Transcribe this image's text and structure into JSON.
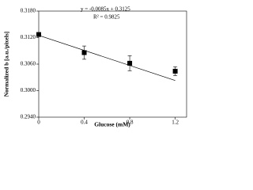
{
  "chart_data": {
    "type": "scatter",
    "title": "",
    "x_label": "Glucose (mM)",
    "y_label": "Normalized b [a.u./pixels]",
    "x": [
      0,
      0.4,
      0.8,
      1.2
    ],
    "series": [
      {
        "color": "#000000",
        "values": [
          0.3127,
          0.3086,
          0.3062,
          0.3044
        ],
        "errors": [
          0.0003,
          0.0015,
          0.0017,
          0.001
        ]
      }
    ],
    "trendline": {
      "slope": -0.0085,
      "intercept": 0.3125,
      "equation": "y = -0.0085x + 0.3125",
      "r2": "R² = 0.9825"
    },
    "xlim": [
      0,
      1.3
    ],
    "xticks": [
      0,
      0.4,
      0.8,
      1.2
    ],
    "ylim": [
      0.294,
      0.318
    ],
    "yticks": [
      {
        "value": 0.294,
        "label": "0.2940"
      },
      {
        "value": 0.3,
        "label": "0.3000"
      },
      {
        "value": 0.306,
        "label": "0.3060"
      },
      {
        "value": 0.312,
        "label": "0.3120"
      },
      {
        "value": 0.318,
        "label": "0.3180"
      }
    ],
    "grid": false
  }
}
